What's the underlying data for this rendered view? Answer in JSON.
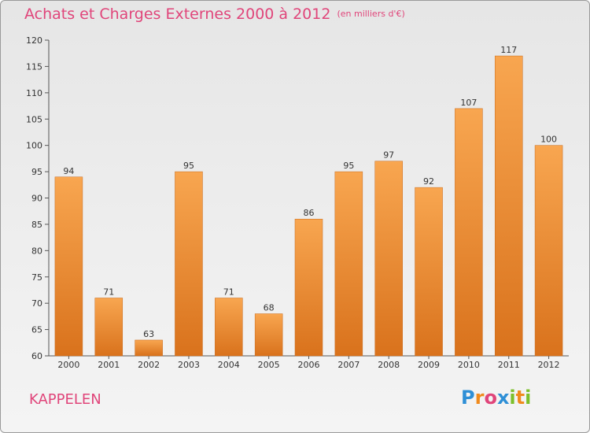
{
  "title": "Achats et Charges Externes 2000 à 2012",
  "unit": "(en milliers d'€)",
  "place": "KAPPELEN",
  "logo": {
    "text": "Proxiti"
  },
  "colors": {
    "title": "#e0457a",
    "bar_top": "#f8a650",
    "bar_bottom": "#d9721c"
  },
  "chart_data": {
    "type": "bar",
    "title": "Achats et Charges Externes 2000 à 2012",
    "categories": [
      "2000",
      "2001",
      "2002",
      "2003",
      "2004",
      "2005",
      "2006",
      "2007",
      "2008",
      "2009",
      "2010",
      "2011",
      "2012"
    ],
    "values": [
      94,
      71,
      63,
      95,
      71,
      68,
      86,
      95,
      97,
      92,
      107,
      117,
      100
    ],
    "ylim": [
      60,
      120
    ],
    "yticks": [
      60,
      65,
      70,
      75,
      80,
      85,
      90,
      95,
      100,
      105,
      110,
      115,
      120
    ],
    "xlabel": "",
    "ylabel": "",
    "grid": false,
    "legend": "none"
  }
}
